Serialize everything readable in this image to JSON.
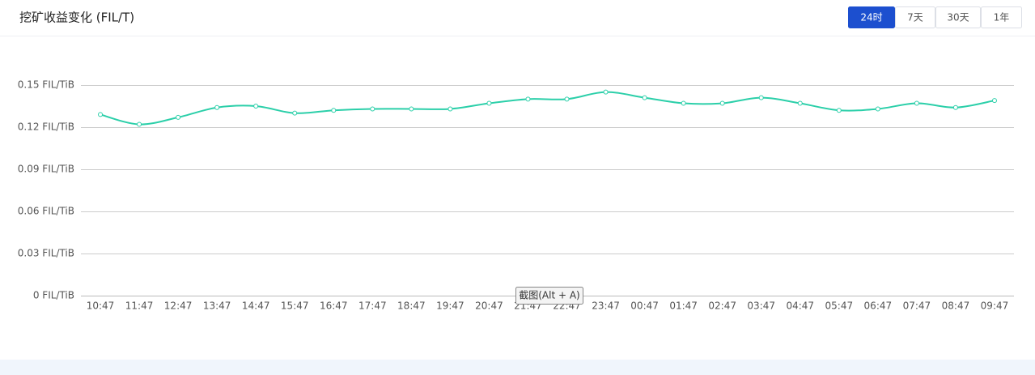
{
  "header": {
    "title": "挖矿收益变化 (FIL/T)",
    "tabs": [
      "24时",
      "7天",
      "30天",
      "1年"
    ]
  },
  "tooltip": "截图(Alt + A)",
  "chart_data": {
    "type": "line",
    "categories": [
      "10:47",
      "11:47",
      "12:47",
      "13:47",
      "14:47",
      "15:47",
      "16:47",
      "17:47",
      "18:47",
      "19:47",
      "20:47",
      "21:47",
      "22:47",
      "23:47",
      "00:47",
      "01:47",
      "02:47",
      "03:47",
      "04:47",
      "05:47",
      "06:47",
      "07:47",
      "08:47",
      "09:47"
    ],
    "series": [
      {
        "color": "#2bcfa9",
        "values": [
          0.129,
          0.122,
          0.127,
          0.134,
          0.135,
          0.13,
          0.132,
          0.133,
          0.133,
          0.133,
          0.137,
          0.14,
          0.14,
          0.145,
          0.141,
          0.137,
          0.137,
          0.141,
          0.137,
          0.132,
          0.133,
          0.137,
          0.134,
          0.139
        ]
      }
    ],
    "ylim": [
      0,
      0.15
    ],
    "yticks": [
      {
        "value": 0,
        "label": "0 FIL/TiB"
      },
      {
        "value": 0.03,
        "label": "0.03 FIL/TiB"
      },
      {
        "value": 0.06,
        "label": "0.06 FIL/TiB"
      },
      {
        "value": 0.09,
        "label": "0.09 FIL/TiB"
      },
      {
        "value": 0.12,
        "label": "0.12 FIL/TiB"
      },
      {
        "value": 0.15,
        "label": "0.15 FIL/TiB"
      }
    ],
    "grid": true
  }
}
